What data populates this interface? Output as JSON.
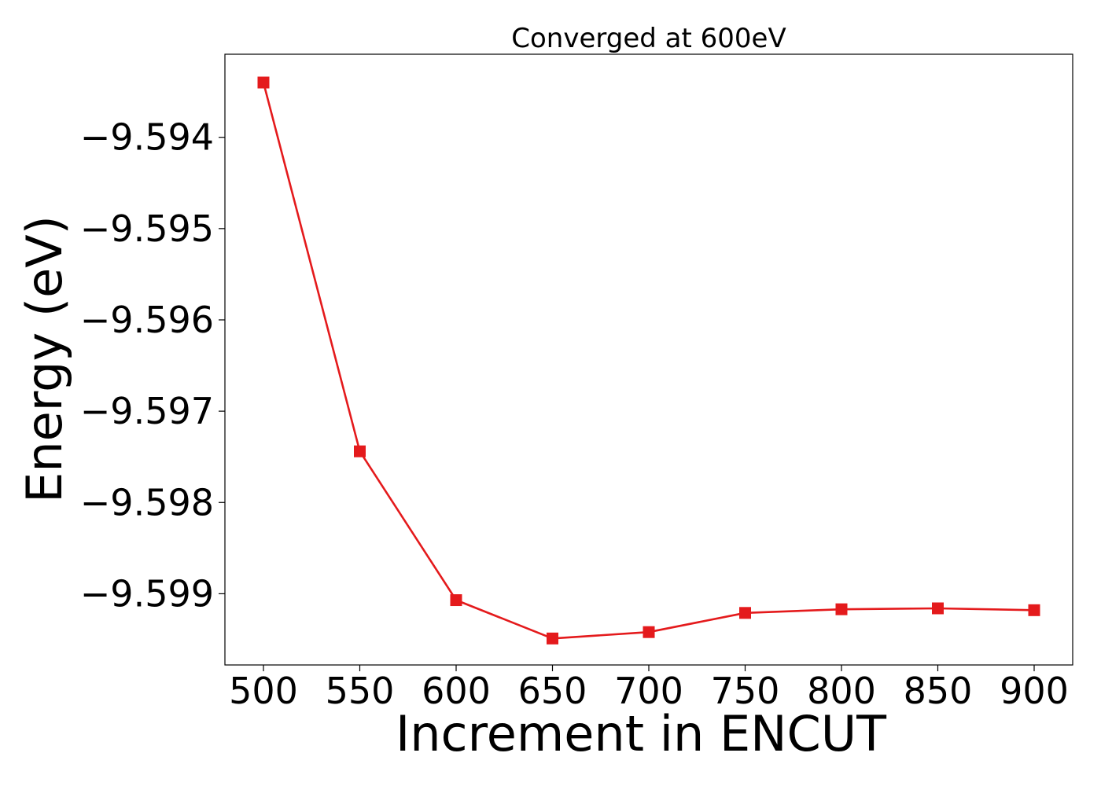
{
  "chart_data": {
    "type": "line",
    "title": "Converged at 600eV",
    "xlabel": "Increment in ENCUT",
    "ylabel": "Energy (eV)",
    "x": [
      500,
      550,
      600,
      650,
      700,
      750,
      800,
      850,
      900
    ],
    "series": [
      {
        "values": [
          -9.5934,
          -9.59744,
          -9.59907,
          -9.59949,
          -9.59942,
          -9.59921,
          -9.59917,
          -9.59916,
          -9.59918
        ],
        "color": "#e41a1c",
        "marker": "square"
      }
    ],
    "xticks": [
      500,
      550,
      600,
      650,
      700,
      750,
      800,
      850,
      900
    ],
    "xtick_labels": [
      "500",
      "550",
      "600",
      "650",
      "700",
      "750",
      "800",
      "850",
      "900"
    ],
    "yticks": [
      -9.594,
      -9.595,
      -9.596,
      -9.597,
      -9.598,
      -9.599
    ],
    "ytick_labels": [
      "−9.594",
      "−9.595",
      "−9.596",
      "−9.597",
      "−9.598",
      "−9.599"
    ],
    "xlim": [
      480,
      920
    ],
    "ylim": [
      -9.59978,
      -9.59309
    ],
    "grid": false,
    "legend": false
  }
}
